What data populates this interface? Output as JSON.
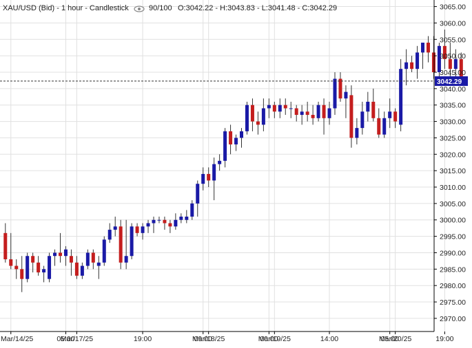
{
  "header": {
    "symbol": "XAU/USD (Bid) - 1 hour - Candlestick",
    "ratio": "90/100",
    "ohlc": "O:3042.22 - H:3043.83 - L:3041.48 - C:3042.29",
    "eye_icon": "eye-icon"
  },
  "chart_data": {
    "type": "candlestick",
    "title": "XAU/USD (Bid) - 1 hour - Candlestick",
    "ylim": [
      2966,
      3067
    ],
    "y_ticks": [
      2970,
      2975,
      2980,
      2985,
      2990,
      2995,
      3000,
      3005,
      3010,
      3015,
      3020,
      3025,
      3030,
      3035,
      3040,
      3045,
      3050,
      3055,
      3060,
      3065
    ],
    "y_tick_labels": [
      "2970.00",
      "2975.00",
      "2980.00",
      "2985.00",
      "2990.00",
      "2995.00",
      "3000.00",
      "3005.00",
      "3010.00",
      "3015.00",
      "3020.00",
      "3025.00",
      "3030.00",
      "3035.00",
      "3040.00",
      "3045.00",
      "3050.00",
      "3055.00",
      "3060.00",
      "3065.00"
    ],
    "x_ticks": [
      {
        "index": 1,
        "label": "Mar/14/25"
      },
      {
        "index": 11,
        "label": "05:00"
      },
      {
        "index": 13,
        "label": "Mar/17/25"
      },
      {
        "index": 25,
        "label": "19:00"
      },
      {
        "index": 36,
        "label": "09:00"
      },
      {
        "index": 37,
        "label": "Mar/18/25"
      },
      {
        "index": 48,
        "label": "00:00"
      },
      {
        "index": 49,
        "label": "Mar/19/25"
      },
      {
        "index": 59,
        "label": "14:00"
      },
      {
        "index": 70,
        "label": "05:00"
      },
      {
        "index": 71,
        "label": "Mar/20/25"
      },
      {
        "index": 80,
        "label": "19:00"
      }
    ],
    "last_price": 3042.29,
    "last_price_label": "3042.29",
    "colors": {
      "up": "#1a1aa6",
      "down": "#c41e1e",
      "grid": "#e0e0e0",
      "axis": "#000000",
      "last_line": "#333333",
      "label_bg": "#1a1aa6"
    },
    "candles": [
      [
        2996,
        2999,
        2987,
        2988
      ],
      [
        2988,
        2996,
        2985,
        2986
      ],
      [
        2986,
        2988,
        2982,
        2985
      ],
      [
        2985,
        2989,
        2978,
        2982
      ],
      [
        2982,
        2990,
        2981,
        2989
      ],
      [
        2989,
        2990,
        2984,
        2987
      ],
      [
        2987,
        2989,
        2983,
        2984
      ],
      [
        2984,
        2986,
        2981,
        2985
      ],
      [
        2982,
        2990,
        2981,
        2989
      ],
      [
        2989,
        2991,
        2986,
        2990
      ],
      [
        2990,
        2996,
        2987,
        2989
      ],
      [
        2989,
        2992,
        2986,
        2991
      ],
      [
        2989,
        2991,
        2983,
        2987
      ],
      [
        2987,
        2989,
        2982,
        2983
      ],
      [
        2983,
        2987,
        2982,
        2986
      ],
      [
        2986,
        2991,
        2985,
        2990
      ],
      [
        2990,
        2991,
        2985,
        2987
      ],
      [
        2986,
        2989,
        2982,
        2987
      ],
      [
        2987,
        2995,
        2986,
        2994
      ],
      [
        2994,
        2999,
        2993,
        2997
      ],
      [
        2997,
        3001,
        2995,
        2998
      ],
      [
        2998,
        3000,
        2985,
        2987
      ],
      [
        2987,
        3000,
        2985,
        2989
      ],
      [
        2989,
        2999,
        2988,
        2998
      ],
      [
        2998,
        2999,
        2995,
        2996
      ],
      [
        2996,
        2999,
        2994,
        2998
      ],
      [
        2998,
        3000,
        2996,
        2999
      ],
      [
        2999,
        3001,
        2996,
        3000
      ],
      [
        3000,
        3001,
        2999,
        3000
      ],
      [
        3000,
        3001,
        2997,
        2999
      ],
      [
        2999,
        3000,
        2996,
        2998
      ],
      [
        2998,
        3002,
        2997,
        3000
      ],
      [
        3000,
        3002,
        2999,
        3001
      ],
      [
        3000,
        3003,
        2999,
        3001
      ],
      [
        3001,
        3006,
        3000,
        3005
      ],
      [
        3005,
        3012,
        3001,
        3011
      ],
      [
        3011,
        3016,
        3009,
        3014
      ],
      [
        3014,
        3016,
        3010,
        3012
      ],
      [
        3012,
        3019,
        3006,
        3017
      ],
      [
        3017,
        3020,
        3015,
        3018
      ],
      [
        3018,
        3028,
        3016,
        3027
      ],
      [
        3027,
        3029,
        3020,
        3023
      ],
      [
        3023,
        3026,
        3021,
        3025
      ],
      [
        3025,
        3028,
        3022,
        3027
      ],
      [
        3027,
        3036,
        3026,
        3035
      ],
      [
        3035,
        3037,
        3027,
        3030
      ],
      [
        3030,
        3033,
        3026,
        3029
      ],
      [
        3029,
        3037,
        3027,
        3034
      ],
      [
        3034,
        3037,
        3031,
        3035
      ],
      [
        3035,
        3036,
        3031,
        3033
      ],
      [
        3033,
        3037,
        3031,
        3035
      ],
      [
        3035,
        3037,
        3032,
        3034
      ],
      [
        3034,
        3036,
        3031,
        3034
      ],
      [
        3034,
        3035,
        3030,
        3032
      ],
      [
        3032,
        3035,
        3029,
        3033
      ],
      [
        3033,
        3036,
        3030,
        3032
      ],
      [
        3032,
        3035,
        3029,
        3031
      ],
      [
        3031,
        3036,
        3030,
        3035
      ],
      [
        3035,
        3037,
        3026,
        3031
      ],
      [
        3031,
        3036,
        3029,
        3034
      ],
      [
        3034,
        3045,
        3032,
        3043
      ],
      [
        3043,
        3045,
        3036,
        3037
      ],
      [
        3037,
        3041,
        3031,
        3039
      ],
      [
        3038,
        3041,
        3022,
        3025
      ],
      [
        3025,
        3031,
        3023,
        3028
      ],
      [
        3028,
        3036,
        3026,
        3033
      ],
      [
        3033,
        3039,
        3030,
        3036
      ],
      [
        3036,
        3040,
        3030,
        3031
      ],
      [
        3031,
        3034,
        3025,
        3026
      ],
      [
        3026,
        3033,
        3025,
        3031
      ],
      [
        3031,
        3037,
        3028,
        3033
      ],
      [
        3033,
        3034,
        3028,
        3030
      ],
      [
        3029,
        3049,
        3027,
        3046
      ],
      [
        3046,
        3052,
        3041,
        3048
      ],
      [
        3048,
        3050,
        3045,
        3046
      ],
      [
        3046,
        3053,
        3043,
        3051
      ],
      [
        3051,
        3054,
        3046,
        3054
      ],
      [
        3054,
        3056,
        3048,
        3051
      ],
      [
        3051,
        3056,
        3043,
        3045
      ],
      [
        3045,
        3054,
        3043,
        3053
      ],
      [
        3053,
        3058,
        3046,
        3049
      ],
      [
        3049,
        3054,
        3043,
        3046
      ],
      [
        3046,
        3052,
        3042,
        3049
      ],
      [
        3049,
        3051,
        3041,
        3042.29
      ]
    ]
  }
}
